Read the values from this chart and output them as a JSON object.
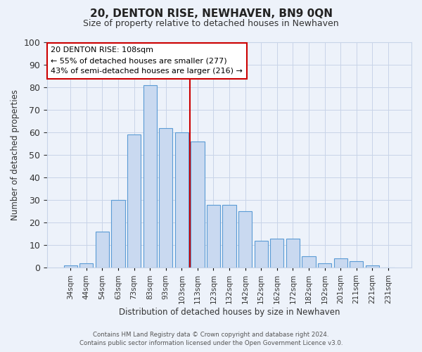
{
  "title": "20, DENTON RISE, NEWHAVEN, BN9 0QN",
  "subtitle": "Size of property relative to detached houses in Newhaven",
  "xlabel": "Distribution of detached houses by size in Newhaven",
  "ylabel": "Number of detached properties",
  "bar_labels": [
    "34sqm",
    "44sqm",
    "54sqm",
    "63sqm",
    "73sqm",
    "83sqm",
    "93sqm",
    "103sqm",
    "113sqm",
    "123sqm",
    "132sqm",
    "142sqm",
    "152sqm",
    "162sqm",
    "172sqm",
    "182sqm",
    "192sqm",
    "201sqm",
    "211sqm",
    "221sqm",
    "231sqm"
  ],
  "bar_values": [
    1,
    2,
    16,
    30,
    59,
    81,
    62,
    60,
    56,
    28,
    28,
    25,
    12,
    13,
    13,
    5,
    2,
    4,
    3,
    1,
    0
  ],
  "bar_color": "#c9d9f0",
  "bar_edge_color": "#5b9bd5",
  "grid_color": "#c8d4e8",
  "background_color": "#edf2fa",
  "vline_color": "#cc0000",
  "annotation_title": "20 DENTON RISE: 108sqm",
  "annotation_line1": "← 55% of detached houses are smaller (277)",
  "annotation_line2": "43% of semi-detached houses are larger (216) →",
  "annotation_box_facecolor": "#ffffff",
  "annotation_box_edgecolor": "#cc0000",
  "ylim": [
    0,
    100
  ],
  "yticks": [
    0,
    10,
    20,
    30,
    40,
    50,
    60,
    70,
    80,
    90,
    100
  ],
  "footer1": "Contains HM Land Registry data © Crown copyright and database right 2024.",
  "footer2": "Contains public sector information licensed under the Open Government Licence v3.0."
}
